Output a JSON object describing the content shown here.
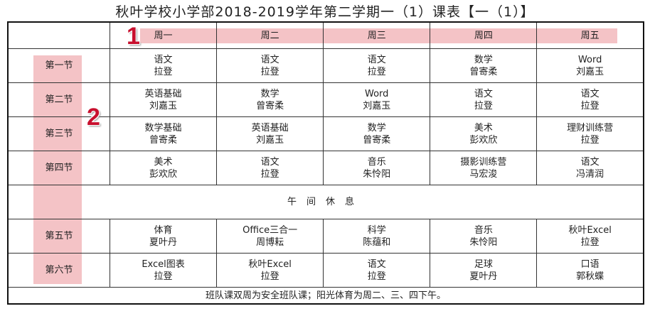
{
  "title": "秋叶学校小学部2018-2019学年第二学期一（1）课表【一（1）】",
  "markers": [
    "1",
    "2"
  ],
  "highlight_color": "#f4c3c6",
  "days": [
    "周一",
    "周二",
    "周三",
    "周四",
    "周五"
  ],
  "rows": [
    {
      "period": "第一节",
      "cells": [
        [
          "语文",
          "拉登"
        ],
        [
          "语文",
          "拉登"
        ],
        [
          "语文",
          "拉登"
        ],
        [
          "数学",
          "曾寄柔"
        ],
        [
          "Word",
          "刘嘉玉"
        ]
      ]
    },
    {
      "period": "第二节",
      "cells": [
        [
          "英语基础",
          "刘嘉玉"
        ],
        [
          "数学",
          "曾寄柔"
        ],
        [
          "Word",
          "刘嘉玉"
        ],
        [
          "语文",
          "拉登"
        ],
        [
          "语文",
          "拉登"
        ]
      ]
    },
    {
      "period": "第三节",
      "cells": [
        [
          "数学基础",
          "曾寄柔"
        ],
        [
          "英语基础",
          "刘嘉玉"
        ],
        [
          "数学",
          "曾寄柔"
        ],
        [
          "美术",
          "彭欢欣"
        ],
        [
          "理财训练营",
          "拉登"
        ]
      ]
    },
    {
      "period": "第四节",
      "cells": [
        [
          "美术",
          "彭欢欣"
        ],
        [
          "语文",
          "拉登"
        ],
        [
          "音乐",
          "朱怜阳"
        ],
        [
          "摄影训练营",
          "马宏浚"
        ],
        [
          "语文",
          "冯清润"
        ]
      ]
    },
    {
      "period": "第五节",
      "cells": [
        [
          "体育",
          "夏叶丹"
        ],
        [
          "Office三合一",
          "周博耘"
        ],
        [
          "科学",
          "陈蕴和"
        ],
        [
          "音乐",
          "朱怜阳"
        ],
        [
          "秋叶Excel",
          "拉登"
        ]
      ]
    },
    {
      "period": "第六节",
      "cells": [
        [
          "Excel图表",
          "拉登"
        ],
        [
          "秋叶Excel",
          "拉登"
        ],
        [
          "语文",
          "拉登"
        ],
        [
          "足球",
          "夏叶丹"
        ],
        [
          "口语",
          "郭秋蝶"
        ]
      ]
    }
  ],
  "lunch": "午间休息",
  "footer": "班队课双周为安全班队课；阳光体育为周二、三、四下午。"
}
